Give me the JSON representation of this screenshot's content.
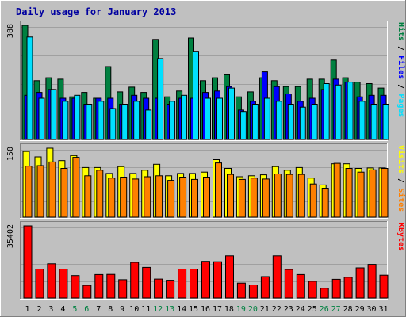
{
  "colors": {
    "background": "#c0c0c0",
    "title": "#0000a0",
    "hits": "#008040",
    "files": "#0000ff",
    "pages": "#00e0ff",
    "visits": "#ffff00",
    "sites": "#ff8000",
    "kbytes": "#ff0000",
    "weekend_label": "#008040",
    "weekday_label": "#000000"
  },
  "chart_data": [
    {
      "type": "bar",
      "title": "Daily usage for January 2013",
      "categories": [
        "1",
        "2",
        "3",
        "4",
        "5",
        "6",
        "7",
        "8",
        "9",
        "10",
        "11",
        "12",
        "13",
        "14",
        "15",
        "16",
        "17",
        "18",
        "19",
        "20",
        "21",
        "22",
        "23",
        "24",
        "25",
        "26",
        "27",
        "28",
        "29",
        "30",
        "31"
      ],
      "weekend_days": [
        "5",
        "6",
        "12",
        "13",
        "19",
        "20",
        "26",
        "27"
      ],
      "ymax_label": "388",
      "ylim": [
        0,
        388
      ],
      "legend": [
        "Pages",
        "Files",
        "Hits"
      ],
      "series": [
        {
          "name": "Hits",
          "values": [
            388,
            200,
            210,
            205,
            145,
            160,
            140,
            248,
            162,
            178,
            160,
            340,
            145,
            165,
            345,
            200,
            210,
            220,
            145,
            162,
            210,
            200,
            180,
            180,
            205,
            205,
            270,
            210,
            195,
            190,
            175
          ]
        },
        {
          "name": "Files",
          "values": [
            150,
            160,
            170,
            140,
            140,
            120,
            140,
            140,
            120,
            150,
            140,
            140,
            120,
            140,
            140,
            160,
            165,
            180,
            100,
            130,
            230,
            180,
            155,
            130,
            140,
            170,
            205,
            195,
            145,
            150,
            150
          ]
        },
        {
          "name": "Pages",
          "values": [
            348,
            140,
            170,
            130,
            150,
            120,
            130,
            105,
            120,
            130,
            100,
            275,
            130,
            150,
            300,
            140,
            140,
            175,
            95,
            120,
            140,
            130,
            120,
            110,
            120,
            190,
            185,
            195,
            130,
            120,
            120
          ]
        }
      ]
    },
    {
      "type": "bar",
      "ymax_label": "150",
      "ylim": [
        0,
        150
      ],
      "legend": [
        "Sites",
        "Visits"
      ],
      "series": [
        {
          "name": "Visits",
          "values": [
            143,
            131,
            150,
            123,
            134,
            108,
            108,
            95,
            110,
            95,
            102,
            115,
            90,
            95,
            95,
            98,
            125,
            106,
            88,
            90,
            92,
            110,
            102,
            108,
            85,
            70,
            116,
            116,
            106,
            107,
            107
          ]
        },
        {
          "name": "Sites",
          "values": [
            111,
            112,
            120,
            106,
            130,
            90,
            102,
            85,
            87,
            83,
            88,
            90,
            80,
            87,
            82,
            87,
            118,
            93,
            82,
            85,
            83,
            94,
            93,
            93,
            72,
            63,
            117,
            106,
            98,
            103,
            106
          ]
        }
      ]
    },
    {
      "type": "bar",
      "ymax_label": "35402",
      "ylim": [
        0,
        35402
      ],
      "legend": [
        "KBytes"
      ],
      "series": [
        {
          "name": "KBytes",
          "values": [
            35402,
            14200,
            16800,
            14200,
            11000,
            6200,
            11500,
            11600,
            9000,
            17500,
            15000,
            9300,
            8700,
            14200,
            14200,
            18000,
            17800,
            20700,
            7300,
            6400,
            10500,
            20700,
            14000,
            11500,
            8200,
            4800,
            9200,
            10200,
            14800,
            16500,
            11200
          ]
        }
      ]
    }
  ]
}
